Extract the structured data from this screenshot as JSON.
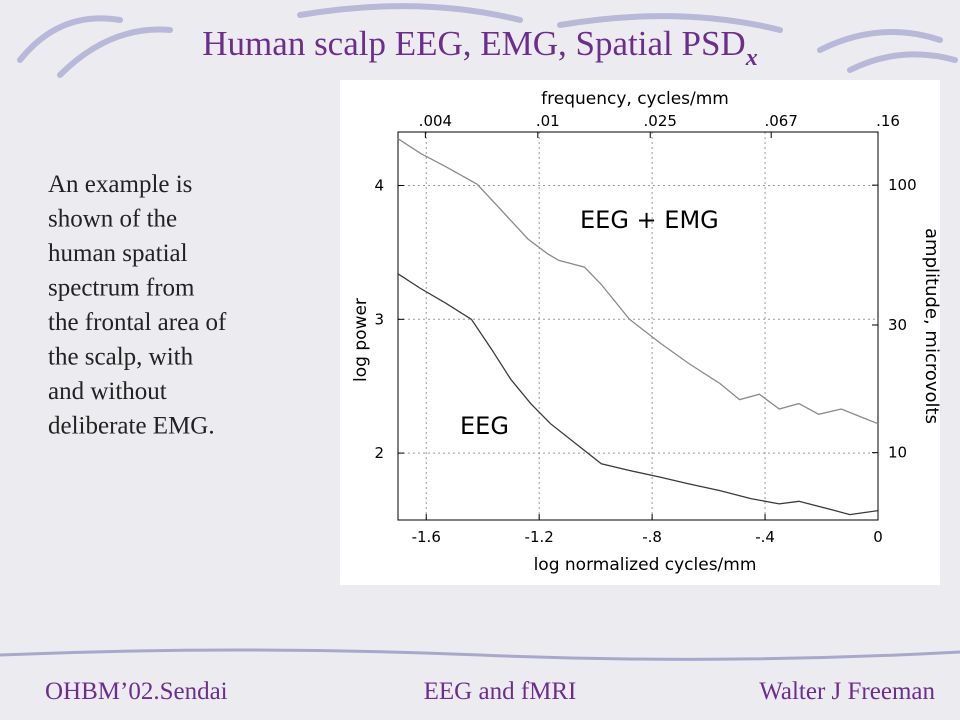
{
  "slide": {
    "title": "Human scalp EEG, EMG, Spatial PSD",
    "title_subscript": "x",
    "body_lines": [
      "An example is",
      "shown of the",
      "human spatial",
      "spectrum from",
      "the frontal area of",
      "the scalp, with",
      "and without",
      "deliberate EMG."
    ],
    "footer": [
      "OHBM’02.Sendai",
      "EEG and fMRI",
      "Walter J Freeman"
    ]
  },
  "chart_data": {
    "type": "line",
    "xlabel": "log normalized cycles/mm",
    "ylabel": "log power",
    "x2label": "frequency, cycles/mm",
    "y2label": "amplitude, microvolts",
    "annotations": [
      "EEG + EMG",
      "EEG"
    ],
    "xlim": [
      -1.7,
      0
    ],
    "xticks": [
      -1.6,
      -1.2,
      {
        "value": -0.8,
        "label": "-.8"
      },
      {
        "value": -0.4,
        "label": "-.4"
      },
      0
    ],
    "ylim": [
      1.5,
      4.4
    ],
    "yticks": [
      2,
      3,
      4
    ],
    "x2lim": [
      0.0032,
      0.16
    ],
    "x2log": true,
    "x2ticks": [
      {
        "value": 0.004,
        "label": ".004"
      },
      {
        "value": 0.01,
        "label": ".01"
      },
      {
        "value": 0.025,
        "label": ".025"
      },
      {
        "value": 0.067,
        "label": ".067"
      },
      {
        "value": 0.16,
        "label": ".16"
      }
    ],
    "y2lim": [
      5.6,
      158
    ],
    "y2log": true,
    "y2ticks": [
      10,
      30,
      100
    ],
    "grid": true,
    "series": [
      {
        "color": "#8a8a8a",
        "x": [
          -1.7,
          -1.62,
          -1.53,
          -1.42,
          -1.34,
          -1.24,
          -1.17,
          -1.13,
          -1.04,
          -0.98,
          -0.88,
          -0.77,
          -0.67,
          -0.56,
          -0.49,
          -0.42,
          -0.35,
          -0.28,
          -0.21,
          -0.13,
          -0.06,
          0
        ],
        "values": [
          4.35,
          4.24,
          4.14,
          4.01,
          3.83,
          3.6,
          3.49,
          3.44,
          3.39,
          3.26,
          3.0,
          2.82,
          2.67,
          2.52,
          2.4,
          2.44,
          2.33,
          2.37,
          2.29,
          2.33,
          2.27,
          2.22
        ]
      },
      {
        "color": "#3a3a3a",
        "x": [
          -1.7,
          -1.62,
          -1.53,
          -1.44,
          -1.37,
          -1.3,
          -1.23,
          -1.16,
          -1.07,
          -0.98,
          -0.88,
          -0.77,
          -0.67,
          -0.56,
          -0.45,
          -0.35,
          -0.28,
          -0.17,
          -0.1,
          0
        ],
        "values": [
          3.34,
          3.23,
          3.12,
          3.0,
          2.78,
          2.55,
          2.37,
          2.22,
          2.07,
          1.92,
          1.87,
          1.82,
          1.77,
          1.72,
          1.66,
          1.62,
          1.64,
          1.58,
          1.54,
          1.57
        ]
      }
    ]
  }
}
